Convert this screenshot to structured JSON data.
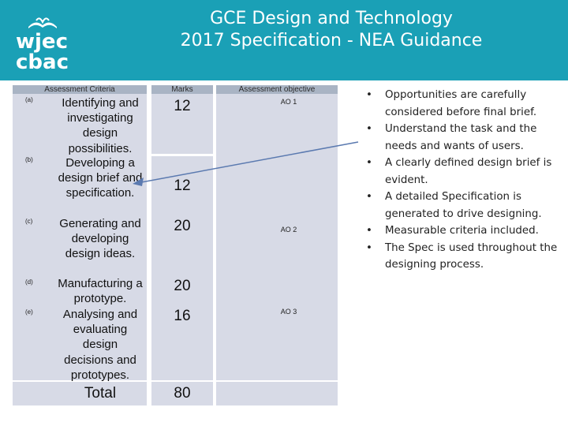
{
  "logo": {
    "line1": "wjec",
    "line2": "cbac"
  },
  "title": {
    "line1": "GCE Design and Technology",
    "line2": "2017 Specification - NEA Guidance"
  },
  "table": {
    "headers": {
      "criteria": "Assessment Criteria",
      "marks": "Marks",
      "objective": "Assessment objective"
    },
    "rows": [
      {
        "letter": "(a)",
        "criterion": "Identifying and investigating design possibilities.",
        "marks": "12"
      },
      {
        "letter": "(b)",
        "criterion": "Developing a design brief and specification.",
        "marks": "12"
      },
      {
        "letter": "(c)",
        "criterion": "Generating and developing design ideas.",
        "marks": "20"
      },
      {
        "letter": "(d)",
        "criterion": "Manufacturing a prototype.",
        "marks": "20"
      },
      {
        "letter": "(e)",
        "criterion": "Analysing and evaluating design decisions and prototypes.",
        "marks": "16"
      }
    ],
    "objectives": [
      "AO 1",
      "AO 2",
      "AO 3"
    ],
    "total_label": "Total",
    "total_marks": "80"
  },
  "bullets": [
    "Opportunities are carefully considered before final brief.",
    "Understand the task and the needs and wants of users.",
    "A clearly defined design brief is evident.",
    "A detailed Specification is generated to drive designing.",
    "Measurable criteria included.",
    "The Spec is used throughout the designing process."
  ],
  "colors": {
    "header_bg": "#1aa0b6",
    "table_header": "#a9b4c4",
    "table_cell": "#d7dae6",
    "arrow": "#5b7ab0"
  }
}
